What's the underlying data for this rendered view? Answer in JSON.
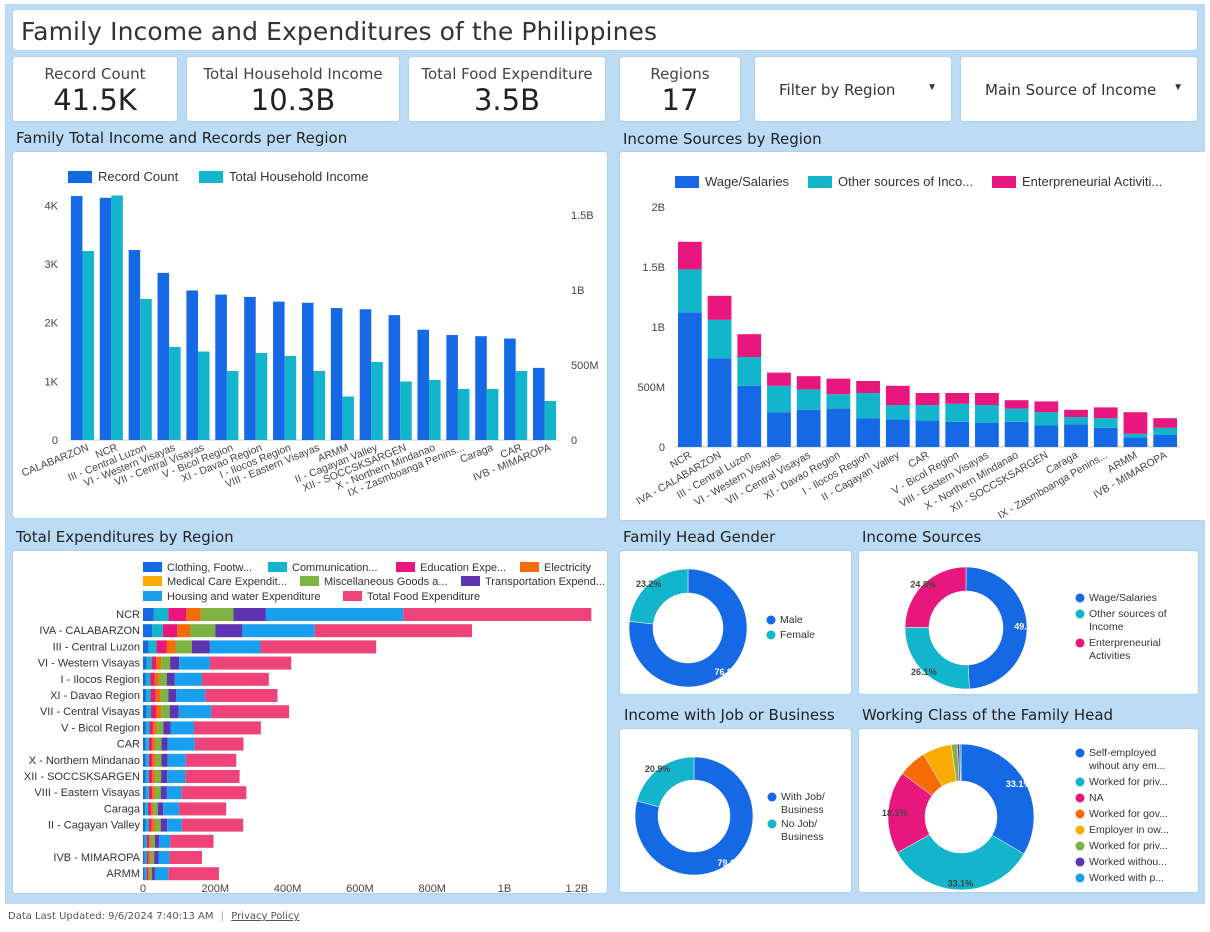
{
  "header": {
    "title": "Family Income and Expenditures of the Philippines"
  },
  "kpis": [
    {
      "label": "Record Count",
      "value": "41.5K"
    },
    {
      "label": "Total Household Income",
      "value": "10.3B"
    },
    {
      "label": "Total Food Expenditure",
      "value": "3.5B"
    },
    {
      "label": "Regions",
      "value": "17"
    }
  ],
  "filters": {
    "region": "Filter by Region",
    "income": "Main Source of Income"
  },
  "sections": {
    "chart1": "Family Total Income and Records per Region",
    "chart2": "Income Sources by Region",
    "chart3": "Total Expenditures by Region",
    "chart4": "Family Head Gender",
    "chart5": "Income Sources",
    "chart6": "Income with Job or Business",
    "chart7": "Working Class of the Family Head"
  },
  "footer": {
    "updated": "Data Last Updated: 9/6/2024 7:40:13 AM",
    "privacy": "Privacy Policy"
  },
  "colors": {
    "blue": "#1669e5",
    "teal": "#12b5cb",
    "pink": "#e8177d",
    "orange": "#f46b07",
    "amber": "#f9ab00",
    "green": "#7cb342",
    "purple": "#5e35b1",
    "lightblue": "#18a0ee",
    "rose": "#ee4378"
  },
  "chart_data": [
    {
      "type": "bar",
      "title": "Family Total Income and Records per Region",
      "categories": [
        "CALABARZON",
        "NCR",
        "III - Central Luzon",
        "VI - Western Visayas",
        "VII - Central Visayas",
        "V - Bicol Region",
        "XI - Davao Region",
        "I - Ilocos Region",
        "VIII - Eastern Visayas",
        "ARMM",
        "II - Cagayan Valley",
        "XII - SOCCSKSARGEN",
        "X - Northern Mindanao",
        "IX - Zasmboanga Penins...",
        "Caraga",
        "CAR",
        "IVB - MIMAROPA"
      ],
      "series": [
        {
          "name": "Record Count",
          "axis": "left",
          "values": [
            4160,
            4130,
            3240,
            2850,
            2550,
            2480,
            2440,
            2360,
            2340,
            2250,
            2230,
            2130,
            1880,
            1790,
            1770,
            1730,
            1230
          ]
        },
        {
          "name": "Total Household Income",
          "axis": "right",
          "values": [
            1260000000,
            1630000000,
            940000000,
            620000000,
            590000000,
            460000000,
            580000000,
            560000000,
            460000000,
            290000000,
            520000000,
            390000000,
            400000000,
            340000000,
            340000000,
            460000000,
            260000000
          ]
        }
      ],
      "y_left_ticks": [
        "0",
        "1K",
        "2K",
        "3K",
        "4K"
      ],
      "y_right_ticks": [
        "0",
        "500M",
        "1B",
        "1.5B"
      ],
      "ylim_left": [
        0,
        4400
      ],
      "ylim_right": [
        0,
        1720000000
      ]
    },
    {
      "type": "bar",
      "stacked": true,
      "title": "Income Sources by Region",
      "categories": [
        "NCR",
        "IVA - CALABARZON",
        "III - Central Luzon",
        "VI - Western Visayas",
        "VII - Central Visayas",
        "XI - Davao Region",
        "I - Ilocos Region",
        "II - Cagayan Valley",
        "CAR",
        "V - Bicol Region",
        "VIII - Eastern Visayas",
        "X - Northern Mindanao",
        "XII - SOCCSKSARGEN",
        "Caraga",
        "IX - Zasmboanga Penins...",
        "ARMM",
        "IVB - MIMAROPA"
      ],
      "series": [
        {
          "name": "Wage/Salaries",
          "values": [
            1120000000,
            740000000,
            510000000,
            290000000,
            310000000,
            320000000,
            240000000,
            230000000,
            220000000,
            210000000,
            200000000,
            210000000,
            180000000,
            190000000,
            160000000,
            80000000,
            100000000
          ]
        },
        {
          "name": "Other sources of Inco...",
          "values": [
            360000000,
            320000000,
            240000000,
            220000000,
            170000000,
            120000000,
            210000000,
            120000000,
            130000000,
            150000000,
            150000000,
            110000000,
            110000000,
            60000000,
            80000000,
            30000000,
            60000000
          ]
        },
        {
          "name": "Enterpreneurial Activiti...",
          "values": [
            230000000,
            200000000,
            190000000,
            110000000,
            110000000,
            130000000,
            100000000,
            160000000,
            100000000,
            90000000,
            100000000,
            70000000,
            90000000,
            60000000,
            90000000,
            180000000,
            80000000
          ]
        }
      ],
      "y_ticks": [
        "0",
        "500M",
        "1B",
        "1.5B",
        "2B"
      ],
      "ylim": [
        0,
        2000000000
      ]
    },
    {
      "type": "bar",
      "orientation": "horizontal",
      "stacked": true,
      "title": "Total Expenditures by Region",
      "categories": [
        "NCR",
        "IVA - CALABARZON",
        "III - Central Luzon",
        "VI - Western Visayas",
        "I - Ilocos Region",
        "XI - Davao Region",
        "VII - Central Visayas",
        "V - Bicol Region",
        "CAR",
        "X - Northern Mindanao",
        "XII - SOCCSKSARGEN",
        "VIII - Eastern Visayas",
        "Caraga",
        "II - Cagayan Valley",
        "",
        "IVB - MIMAROPA",
        "ARMM"
      ],
      "series": [
        {
          "name": "Clothing, Footw...",
          "values": [
            30000000,
            25000000,
            15000000,
            10000000,
            8000000,
            9000000,
            10000000,
            8000000,
            7000000,
            7000000,
            7000000,
            7000000,
            6000000,
            7000000,
            5000000,
            5000000,
            5000000
          ]
        },
        {
          "name": "Communication...",
          "values": [
            40000000,
            30000000,
            22000000,
            14000000,
            12000000,
            12000000,
            12000000,
            10000000,
            9000000,
            9000000,
            9000000,
            9000000,
            8000000,
            9000000,
            6000000,
            6000000,
            5000000
          ]
        },
        {
          "name": "Education Expe...",
          "values": [
            50000000,
            40000000,
            28000000,
            12000000,
            12000000,
            14000000,
            14000000,
            10000000,
            10000000,
            10000000,
            9000000,
            9000000,
            8000000,
            8000000,
            6000000,
            5000000,
            4000000
          ]
        },
        {
          "name": "Electricity",
          "values": [
            40000000,
            35000000,
            25000000,
            14000000,
            12000000,
            13000000,
            14000000,
            10000000,
            7000000,
            9000000,
            9000000,
            8000000,
            6000000,
            9000000,
            5000000,
            5000000,
            4000000
          ]
        },
        {
          "name": "Medical Care Expendit...",
          "values": [
            0,
            0,
            0,
            0,
            0,
            0,
            0,
            0,
            0,
            0,
            0,
            0,
            0,
            0,
            0,
            0,
            0
          ]
        },
        {
          "name": "Miscellaneous Goods a...",
          "values": [
            90000000,
            70000000,
            45000000,
            25000000,
            22000000,
            22000000,
            24000000,
            18000000,
            18000000,
            16000000,
            16000000,
            16000000,
            13000000,
            16000000,
            11000000,
            10000000,
            7000000
          ]
        },
        {
          "name": "Transportation Expend...",
          "values": [
            90000000,
            75000000,
            50000000,
            25000000,
            22000000,
            22000000,
            25000000,
            20000000,
            17000000,
            17000000,
            17000000,
            17000000,
            15000000,
            18000000,
            12000000,
            12000000,
            8000000
          ]
        },
        {
          "name": "Housing and water Expenditure",
          "values": [
            380000000,
            200000000,
            140000000,
            85000000,
            75000000,
            80000000,
            90000000,
            65000000,
            75000000,
            50000000,
            50000000,
            40000000,
            44000000,
            40000000,
            30000000,
            30000000,
            37000000
          ]
        },
        {
          "name": "Total Food Expenditure",
          "values": [
            520000000,
            435000000,
            320000000,
            225000000,
            185000000,
            200000000,
            215000000,
            185000000,
            135000000,
            140000000,
            150000000,
            180000000,
            130000000,
            170000000,
            120000000,
            90000000,
            140000000
          ]
        }
      ],
      "x_ticks": [
        "0",
        "200M",
        "400M",
        "600M",
        "800M",
        "1B",
        "1.2B"
      ],
      "xlim": [
        0,
        1300000000
      ]
    },
    {
      "type": "pie",
      "donut": true,
      "title": "Family Head Gender",
      "labels": [
        "Male",
        "Female"
      ],
      "values": [
        76.8,
        23.2
      ]
    },
    {
      "type": "pie",
      "donut": true,
      "title": "Income Sources",
      "labels": [
        "Wage/Salaries",
        "Other sources of Income",
        "Enterpreneurial Activities"
      ],
      "values": [
        49.1,
        26.1,
        24.8
      ]
    },
    {
      "type": "pie",
      "donut": true,
      "title": "Income with Job or Business",
      "labels": [
        "With Job/ Business",
        "No Job/ Business"
      ],
      "values": [
        79.1,
        20.9
      ]
    },
    {
      "type": "pie",
      "donut": true,
      "title": "Working Class of the Family Head",
      "labels": [
        "Self-employed wihout any em...",
        "Worked for priv...",
        "NA",
        "Worked for gov...",
        "Employer in ow...",
        "Worked for priv...",
        "Worked withou...",
        "Worked with p..."
      ],
      "values": [
        33.1,
        33.1,
        18.1,
        6.2,
        6.4,
        1.3,
        0.5,
        0.3
      ]
    }
  ]
}
